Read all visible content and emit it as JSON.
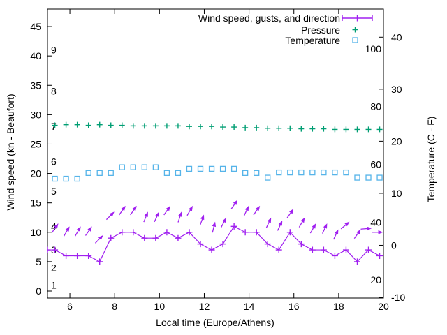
{
  "legend": {
    "items": [
      {
        "label": "Wind speed, gusts, and direction",
        "series": "wind"
      },
      {
        "label": "Pressure",
        "series": "pressure"
      },
      {
        "label": "Temperature",
        "series": "temperature"
      }
    ]
  },
  "axes": {
    "x": {
      "label": "Local time (Europe/Athens)",
      "range": [
        5,
        20
      ],
      "ticks": [
        6,
        8,
        10,
        12,
        14,
        16,
        18,
        20
      ]
    },
    "y_left": {
      "label": "Wind speed (kn - Beaufort)",
      "range": [
        -1.2,
        48
      ],
      "ticks": [
        0,
        5,
        10,
        15,
        20,
        25,
        30,
        35,
        40,
        45
      ]
    },
    "y_right": {
      "label": "Temperature (C - F)",
      "range": [
        -10.1,
        45.4
      ],
      "ticks": [
        -10,
        0,
        10,
        20,
        30,
        40
      ]
    },
    "beaufort_labels": [
      {
        "text": "1",
        "kn": 1
      },
      {
        "text": "2",
        "kn": 4
      },
      {
        "text": "3",
        "kn": 7
      },
      {
        "text": "4",
        "kn": 11
      },
      {
        "text": "5",
        "kn": 17
      },
      {
        "text": "6",
        "kn": 22
      },
      {
        "text": "7",
        "kn": 28
      },
      {
        "text": "8",
        "kn": 34
      },
      {
        "text": "9",
        "kn": 41
      }
    ],
    "fahrenheit_labels": [
      {
        "text": "20",
        "c": -6.67
      },
      {
        "text": "40",
        "c": 4.44
      },
      {
        "text": "60",
        "c": 15.56
      },
      {
        "text": "80",
        "c": 26.67
      },
      {
        "text": "100",
        "c": 37.78
      }
    ]
  },
  "colors": {
    "wind": "#a020f0",
    "pressure": "#009e73",
    "temperature": "#56b4e9",
    "axis": "#000000",
    "background": "#ffffff"
  },
  "chart_data": {
    "type": "line",
    "x_unit": "hour of day (Europe/Athens)",
    "grid": false,
    "legend_position": "top-right-inside",
    "wind": {
      "name": "Wind speed",
      "unit": "kn",
      "axis": "left",
      "marker": "plus-with-line",
      "times": [
        5.0,
        5.33,
        5.83,
        6.33,
        6.83,
        7.33,
        7.83,
        8.33,
        8.83,
        9.33,
        9.83,
        10.33,
        10.83,
        11.33,
        11.83,
        12.33,
        12.83,
        13.33,
        13.83,
        14.33,
        14.83,
        15.33,
        15.83,
        16.33,
        16.83,
        17.33,
        17.83,
        18.33,
        18.83,
        19.33,
        19.83
      ],
      "values_kn": [
        7,
        7,
        6,
        6,
        6,
        5,
        9,
        10,
        10,
        9,
        9,
        10,
        9,
        10,
        8,
        7,
        8,
        11,
        10,
        10,
        8,
        7,
        10,
        8,
        7,
        7,
        6,
        7,
        5,
        7,
        6
      ]
    },
    "gusts": {
      "name": "Wind gusts and direction",
      "unit": "kn",
      "axis": "left",
      "marker": "arrow-vector",
      "times": [
        5.33,
        5.83,
        6.33,
        6.83,
        7.33,
        7.83,
        8.33,
        8.83,
        9.33,
        9.83,
        10.33,
        10.83,
        11.33,
        11.83,
        12.33,
        12.83,
        13.33,
        13.83,
        14.33,
        14.83,
        15.33,
        15.83,
        16.33,
        16.83,
        17.33,
        17.83,
        18.33,
        18.83,
        19.33,
        19.83
      ],
      "values_kn": [
        11.5,
        11,
        11,
        11,
        9.5,
        13.5,
        14.5,
        14.5,
        13.5,
        13.5,
        14.5,
        13.5,
        14.5,
        13,
        11.8,
        12.5,
        15.5,
        14.5,
        14.5,
        12.5,
        12,
        14,
        12.5,
        11.5,
        11.5,
        10.5,
        11.8,
        10.5,
        10.7,
        10
      ],
      "direction_deg_from_east": [
        55,
        60,
        60,
        55,
        45,
        45,
        55,
        55,
        68,
        65,
        55,
        72,
        60,
        70,
        76,
        62,
        55,
        65,
        55,
        65,
        65,
        55,
        60,
        60,
        65,
        65,
        40,
        55,
        5,
        0
      ]
    },
    "pressure": {
      "name": "Pressure",
      "axis": "no-visible-scale",
      "marker": "plus",
      "times": [
        5.33,
        5.83,
        6.33,
        6.83,
        7.33,
        7.83,
        8.33,
        8.83,
        9.33,
        9.83,
        10.33,
        10.83,
        11.33,
        11.83,
        12.33,
        12.83,
        13.33,
        13.83,
        14.33,
        14.83,
        15.33,
        15.83,
        16.33,
        16.83,
        17.33,
        17.83,
        18.33,
        18.83,
        19.33,
        19.83
      ],
      "values_left_axis": [
        28.2,
        28.3,
        28.3,
        28.2,
        28.3,
        28.2,
        28.2,
        28.1,
        28.1,
        28.1,
        28.1,
        28.1,
        28.0,
        28.0,
        28.0,
        27.9,
        27.9,
        27.8,
        27.8,
        27.7,
        27.7,
        27.7,
        27.6,
        27.6,
        27.6,
        27.5,
        27.5,
        27.5,
        27.5,
        27.5
      ]
    },
    "temperature": {
      "name": "Temperature",
      "unit": "C",
      "axis": "right",
      "marker": "open-square",
      "times": [
        5.33,
        5.83,
        6.33,
        6.83,
        7.33,
        7.83,
        8.33,
        8.83,
        9.33,
        9.83,
        10.33,
        10.83,
        11.33,
        11.83,
        12.33,
        12.83,
        13.33,
        13.83,
        14.33,
        14.83,
        15.33,
        15.83,
        16.33,
        16.83,
        17.33,
        17.83,
        18.33,
        18.83,
        19.33,
        19.83
      ],
      "values_c": [
        12.8,
        12.8,
        12.8,
        13.9,
        13.9,
        13.9,
        15.0,
        15.0,
        15.0,
        15.0,
        13.9,
        13.9,
        14.7,
        14.7,
        14.7,
        14.7,
        14.7,
        13.9,
        13.9,
        13.0,
        14.0,
        14.0,
        14.0,
        14.0,
        14.0,
        14.0,
        14.0,
        13.0,
        13.0,
        13.0
      ]
    }
  }
}
